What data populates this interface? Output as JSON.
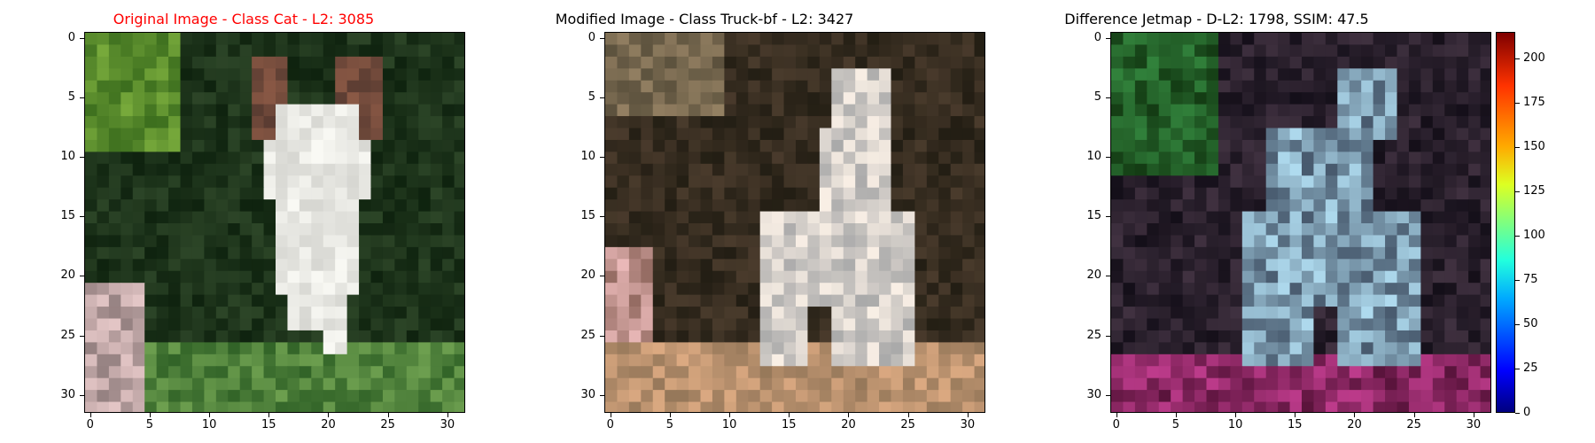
{
  "panels": [
    {
      "title": "Original Image - Class Cat - L2: 3085",
      "title_color": "#ff0000"
    },
    {
      "title": "Modified Image - Class Truck-bf - L2: 3427",
      "title_color": "#000000"
    },
    {
      "title": "Difference Jetmap - D-L2: 1798, SSIM: 47.5",
      "title_color": "#000000"
    }
  ],
  "axis_ticks": [
    "0",
    "5",
    "10",
    "15",
    "20",
    "25",
    "30"
  ],
  "colorbar_ticks": [
    "0",
    "25",
    "50",
    "75",
    "100",
    "125",
    "150",
    "175",
    "200"
  ],
  "image_grid_size": 32
}
